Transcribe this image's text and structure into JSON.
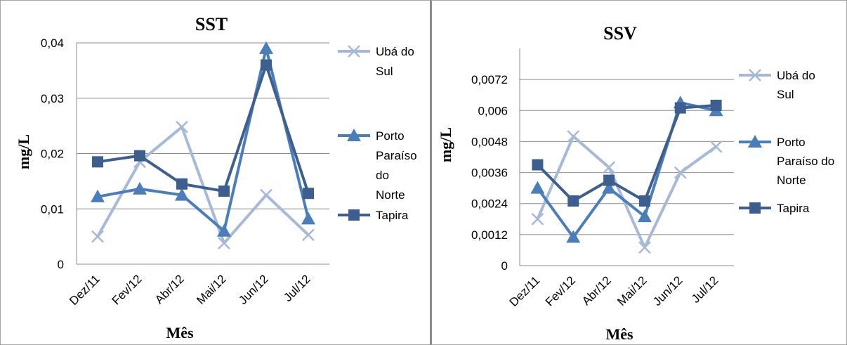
{
  "chart_data": [
    {
      "type": "line",
      "title": "SST",
      "xlabel": "Mês",
      "ylabel": "mg/L",
      "categories": [
        "Dez/11",
        "Fev/12",
        "Abr/12",
        "Mai/12",
        "Jun/12",
        "Jul/12"
      ],
      "ylim": [
        0,
        0.04
      ],
      "yticks": [
        "0",
        "0,01",
        "0,02",
        "0,03",
        "0,04"
      ],
      "grid": true,
      "legend_position": "right",
      "series": [
        {
          "name": "Ubá do Sul",
          "name_lines": [
            "Ubá do",
            "Sul"
          ],
          "marker": "x",
          "color": "#a6b9d8",
          "values": [
            0.005,
            0.0185,
            0.0248,
            0.0038,
            0.0125,
            0.0053
          ]
        },
        {
          "name": "Porto Paraíso do Norte",
          "name_lines": [
            "Porto",
            "Paraíso",
            "do",
            "Norte"
          ],
          "marker": "triangle",
          "color": "#4a7ebb",
          "values": [
            0.0122,
            0.0136,
            0.0125,
            0.006,
            0.039,
            0.0082
          ]
        },
        {
          "name": "Tapira",
          "name_lines": [
            "Tapira"
          ],
          "marker": "square",
          "color": "#3c5f8f",
          "values": [
            0.0185,
            0.0196,
            0.0145,
            0.0132,
            0.036,
            0.0128
          ]
        }
      ]
    },
    {
      "type": "line",
      "title": "SSV",
      "xlabel": "Mês",
      "ylabel": "mg/L",
      "categories": [
        "Dez/11",
        "Fev/12",
        "Abr/12",
        "Mai/12",
        "Jun/12",
        "Jul/12"
      ],
      "ylim": [
        0,
        0.0084
      ],
      "yticks": [
        "0",
        "0,0012",
        "0,0024",
        "0,0036",
        "0,0048",
        "0,006",
        "0,0072"
      ],
      "grid": true,
      "legend_position": "right",
      "series": [
        {
          "name": "Ubá do Sul",
          "name_lines": [
            "Ubá do",
            "Sul"
          ],
          "marker": "x",
          "color": "#a6b9d8",
          "values": [
            0.0018,
            0.005,
            0.0038,
            0.0007,
            0.0036,
            0.0046
          ]
        },
        {
          "name": "Porto Paraíso do Norte",
          "name_lines": [
            "Porto",
            "Paraíso do",
            "Norte"
          ],
          "marker": "triangle",
          "color": "#4a7ebb",
          "values": [
            0.003,
            0.0011,
            0.003,
            0.0019,
            0.0063,
            0.006
          ]
        },
        {
          "name": "Tapira",
          "name_lines": [
            "Tapira"
          ],
          "marker": "square",
          "color": "#3c5f8f",
          "values": [
            0.0039,
            0.0025,
            0.0033,
            0.0025,
            0.0061,
            0.0062
          ]
        }
      ]
    }
  ]
}
